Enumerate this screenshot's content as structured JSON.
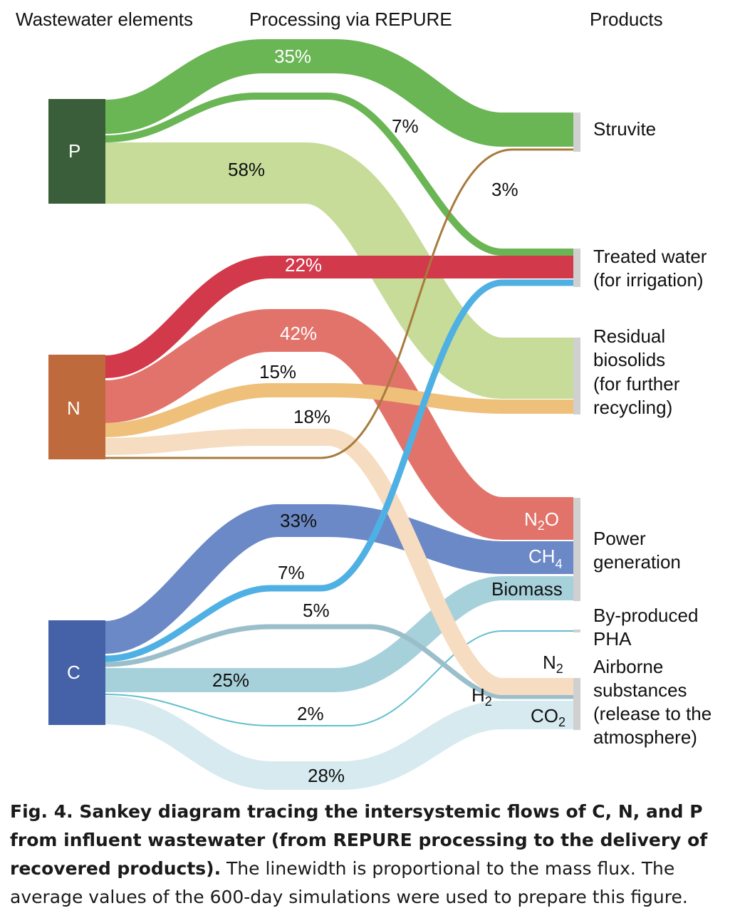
{
  "headers": {
    "elements": "Wastewater elements",
    "processing": "Processing via REPURE",
    "products": "Products"
  },
  "elements": [
    {
      "name": "P",
      "color": "#3b5e3a"
    },
    {
      "name": "N",
      "color": "#bf6a3d"
    },
    {
      "name": "C",
      "color": "#4561a8"
    }
  ],
  "flow_labels": {
    "p_struvite": "35%",
    "p_water": "7%",
    "p_biosolids": "58%",
    "n_struvite": "3%",
    "n_water": "22%",
    "n_n2o": "42%",
    "n_biosolids": "15%",
    "n_n2": "18%",
    "c_ch4": "33%",
    "c_water": "7%",
    "c_h2": "5%",
    "c_biomass": "25%",
    "c_pha": "2%",
    "c_co2": "28%"
  },
  "inline_labels": {
    "n2o_main": "N",
    "n2o_sub": "2",
    "n2o_end": "O",
    "ch4_main": "CH",
    "ch4_sub": "4",
    "biomass": "Biomass",
    "n2_main": "N",
    "n2_sub": "2",
    "h2_main": "H",
    "h2_sub": "2",
    "co2_main": "CO",
    "co2_sub": "2"
  },
  "products": {
    "struvite": "Struvite",
    "water_1": "Treated water",
    "water_2": "(for irrigation)",
    "biosolids_1": "Residual",
    "biosolids_2": "biosolids",
    "biosolids_3": "(for further",
    "biosolids_4": "recycling)",
    "power_1": "Power",
    "power_2": "generation",
    "pha_1": "By-produced",
    "pha_2": "PHA",
    "airborne_1": "Airborne",
    "airborne_2": "substances",
    "airborne_3": "(release to the",
    "airborne_4": "atmosphere)"
  },
  "colors": {
    "p_struvite": "#6ab554",
    "p_water": "#6ab554",
    "p_biosolids": "#c6dc98",
    "n_water": "#d2394a",
    "n_n2o": "#e2736a",
    "n_biosolids": "#efc07a",
    "n_n2": "#f6dcc0",
    "n_struvite": "#a87a3c",
    "c_ch4": "#6b89c6",
    "c_water": "#4fb0e3",
    "c_h2": "#9bbfca",
    "c_biomass": "#a7d1da",
    "c_pha": "#63bfcc",
    "c_co2": "#d6eaef",
    "product_bar": "#d0d0d0"
  },
  "caption": {
    "bold": "Fig. 4. Sankey diagram tracing the intersystemic flows of C, N, and P from influent wastewater (from REPURE processing to the delivery of recovered products).",
    "normal": " The linewidth is proportional to the mass flux. The average values of the 600-day simulations were used to prepare this figure."
  }
}
